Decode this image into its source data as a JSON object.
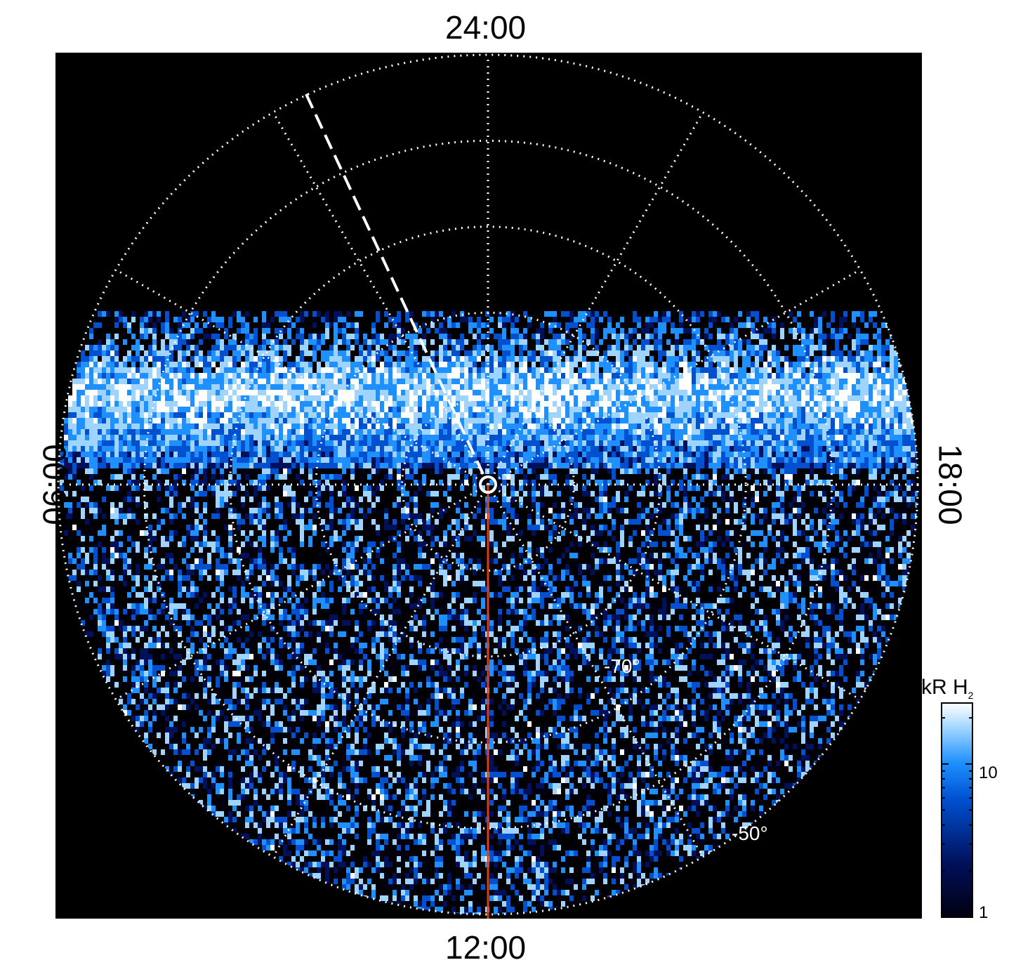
{
  "chart_data": {
    "type": "heatmap",
    "projection": "polar",
    "local_time_labels": {
      "top": "24:00",
      "bottom": "12:00",
      "left": "06:00",
      "right": "18:00"
    },
    "latitude_labels": [
      "-70°",
      "-50°"
    ],
    "latitude_circles": [
      -80,
      -70,
      -60,
      -50,
      -40
    ],
    "meridian_step_hours": 2,
    "colorbar": {
      "title": "kR H",
      "title_subscript": "2",
      "scale": "log",
      "range": [
        1,
        25
      ],
      "ticks": [
        {
          "value": 10,
          "label": "10"
        },
        {
          "value": 1,
          "label": "1"
        }
      ],
      "colors": [
        "#000010",
        "#00105a",
        "#0050d0",
        "#1e90ff",
        "#9ed4ff",
        "#ffffff"
      ]
    },
    "auroral_oval": {
      "intensity_kR": 15,
      "description_level": "bright band near -75° on nightside"
    },
    "reference_line_color": "#e03c10",
    "background_color": "#000000",
    "grid_color": "#ffffff"
  }
}
